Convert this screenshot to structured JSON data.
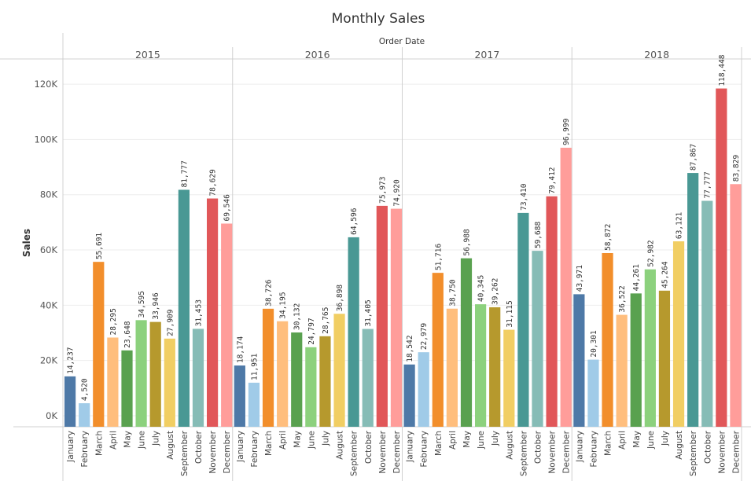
{
  "chart_data": {
    "type": "bar",
    "title": "Monthly Sales",
    "column_header": "Order Date",
    "xlabel": "",
    "ylabel": "Sales",
    "ylim": [
      -4000,
      128000
    ],
    "yticks": [
      0,
      20000,
      40000,
      60000,
      80000,
      100000,
      120000
    ],
    "ytick_labels": [
      "0K",
      "20K",
      "40K",
      "60K",
      "80K",
      "100K",
      "120K"
    ],
    "months": [
      "January",
      "February",
      "March",
      "April",
      "May",
      "June",
      "July",
      "August",
      "September",
      "October",
      "November",
      "December"
    ],
    "month_colors": [
      "#4e79a7",
      "#a0cbe8",
      "#f28e2b",
      "#ffbe7d",
      "#59a14f",
      "#8cd17d",
      "#b6992d",
      "#f1ce63",
      "#499894",
      "#86bcb6",
      "#e15759",
      "#ff9d9a"
    ],
    "years": [
      {
        "year": "2015",
        "values": [
          14237,
          4520,
          55691,
          28295,
          23648,
          34595,
          33946,
          27909,
          81777,
          31453,
          78629,
          69546
        ],
        "labels": [
          "14,237",
          "4,520",
          "55,691",
          "28,295",
          "23,648",
          "34,595",
          "33,946",
          "27,909",
          "81,777",
          "31,453",
          "78,629",
          "69,546"
        ]
      },
      {
        "year": "2016",
        "values": [
          18174,
          11951,
          38726,
          34195,
          30132,
          24797,
          28765,
          36898,
          64596,
          31405,
          75973,
          74920
        ],
        "labels": [
          "18,174",
          "11,951",
          "38,726",
          "34,195",
          "30,132",
          "24,797",
          "28,765",
          "36,898",
          "64,596",
          "31,405",
          "75,973",
          "74,920"
        ]
      },
      {
        "year": "2017",
        "values": [
          18542,
          22979,
          51716,
          38750,
          56988,
          40345,
          39262,
          31115,
          73410,
          59688,
          79412,
          96999
        ],
        "labels": [
          "18,542",
          "22,979",
          "51,716",
          "38,750",
          "56,988",
          "40,345",
          "39,262",
          "31,115",
          "73,410",
          "59,688",
          "79,412",
          "96,999"
        ]
      },
      {
        "year": "2018",
        "values": [
          43971,
          20301,
          58872,
          36522,
          44261,
          52982,
          45264,
          63121,
          87867,
          77777,
          118448,
          83829
        ],
        "labels": [
          "43,971",
          "20,301",
          "58,872",
          "36,522",
          "44,261",
          "52,982",
          "45,264",
          "63,121",
          "87,867",
          "77,777",
          "118,448",
          "83,829"
        ]
      }
    ]
  }
}
